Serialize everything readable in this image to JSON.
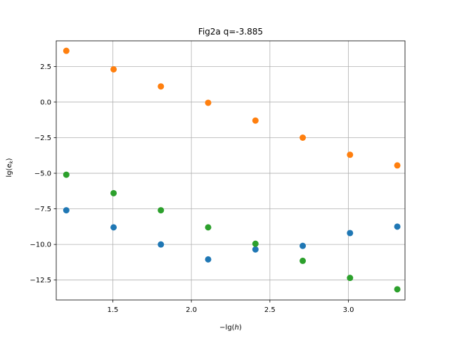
{
  "chart_data": {
    "type": "scatter",
    "title": "Fig2a q=-3.885",
    "xlabel": "−lg(h)",
    "ylabel": "lg(e_k)",
    "xlim": [
      1.14,
      3.36
    ],
    "ylim": [
      -13.9,
      4.3
    ],
    "grid": true,
    "xticks": [
      1.5,
      2.0,
      2.5,
      3.0
    ],
    "xtick_labels": [
      "1.5",
      "2.0",
      "2.5",
      "3.0"
    ],
    "yticks": [
      2.5,
      0.0,
      -2.5,
      -5.0,
      -7.5,
      -10.0,
      -12.5
    ],
    "ytick_labels": [
      "2.5",
      "0.0",
      "−2.5",
      "−5.0",
      "−7.5",
      "−10.0",
      "−12.5"
    ],
    "x": [
      1.204,
      1.505,
      1.806,
      2.107,
      2.408,
      2.709,
      3.01,
      3.311
    ],
    "series": [
      {
        "color": "#1f77b4",
        "values": [
          -7.6,
          -8.8,
          -10.0,
          -11.05,
          -10.35,
          -10.1,
          -9.2,
          -8.75
        ]
      },
      {
        "color": "#ff7f0e",
        "values": [
          3.6,
          2.3,
          1.1,
          -0.05,
          -1.3,
          -2.5,
          -3.7,
          -4.45
        ]
      },
      {
        "color": "#2ca02c",
        "values": [
          -5.1,
          -6.4,
          -7.6,
          -8.8,
          -9.95,
          -11.15,
          -12.35,
          -13.15
        ]
      }
    ]
  }
}
